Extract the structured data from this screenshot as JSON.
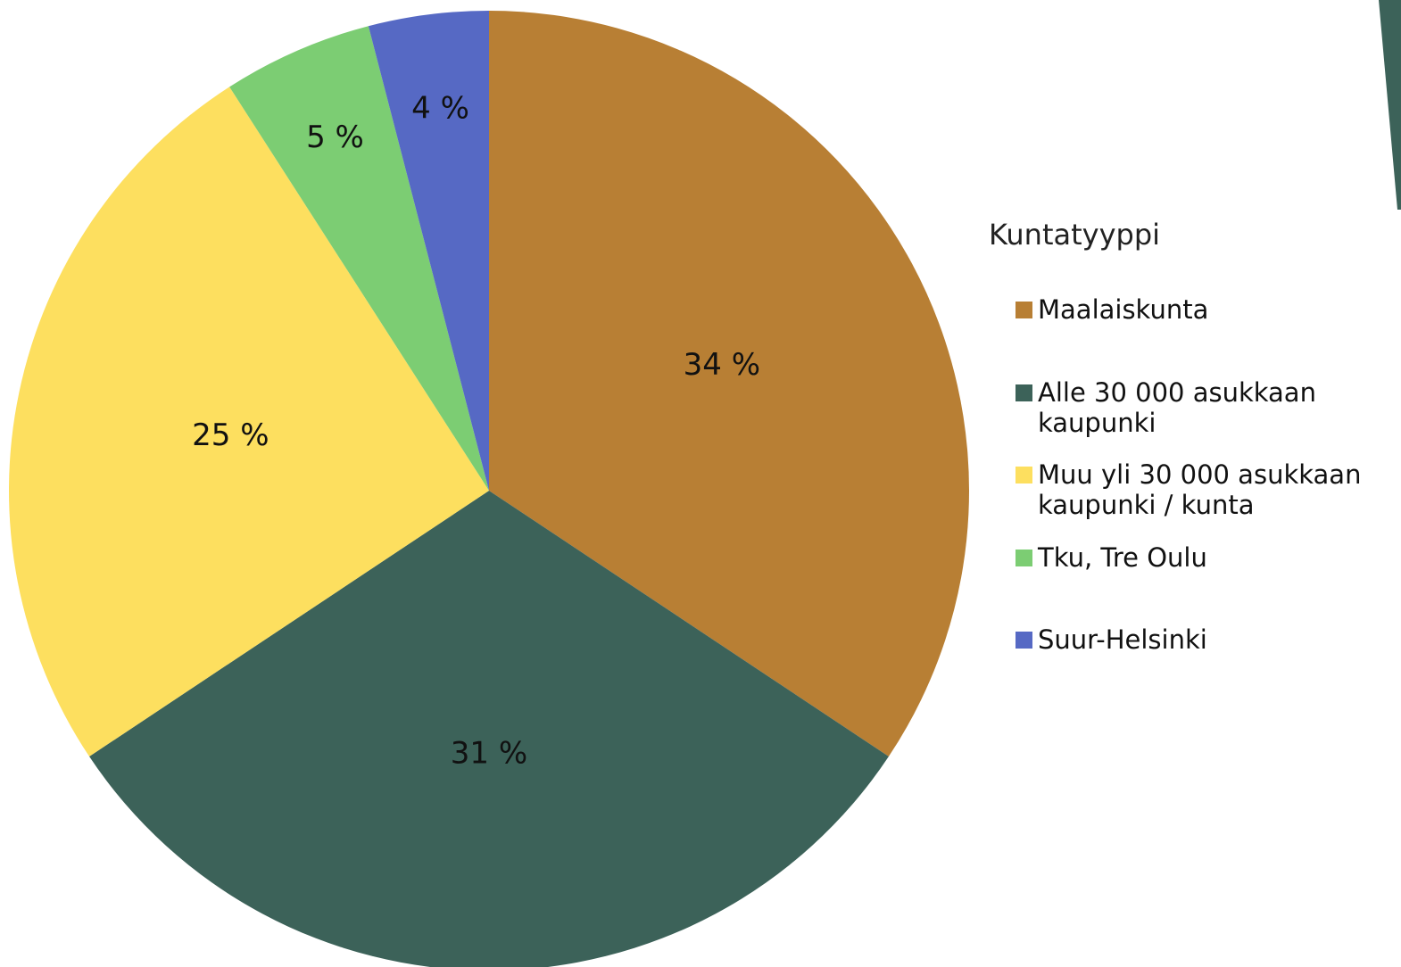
{
  "chart_data": {
    "type": "pie",
    "legend_title": "Kuntatyyppi",
    "categories": [
      "Maalaiskunta",
      "Alle 30 000 asukkaan kaupunki",
      "Muu yli 30 000 asukkaan kaupunki / kunta",
      "Tku, Tre Oulu",
      "Suur-Helsinki"
    ],
    "values": [
      34,
      31,
      25,
      5,
      4
    ],
    "value_labels": [
      "34 %",
      "31 %",
      "25 %",
      "5 %",
      "4 %"
    ],
    "colors": [
      "#b87f34",
      "#3c6259",
      "#fddf5f",
      "#7ccd73",
      "#5669c4"
    ],
    "legend": "right"
  }
}
